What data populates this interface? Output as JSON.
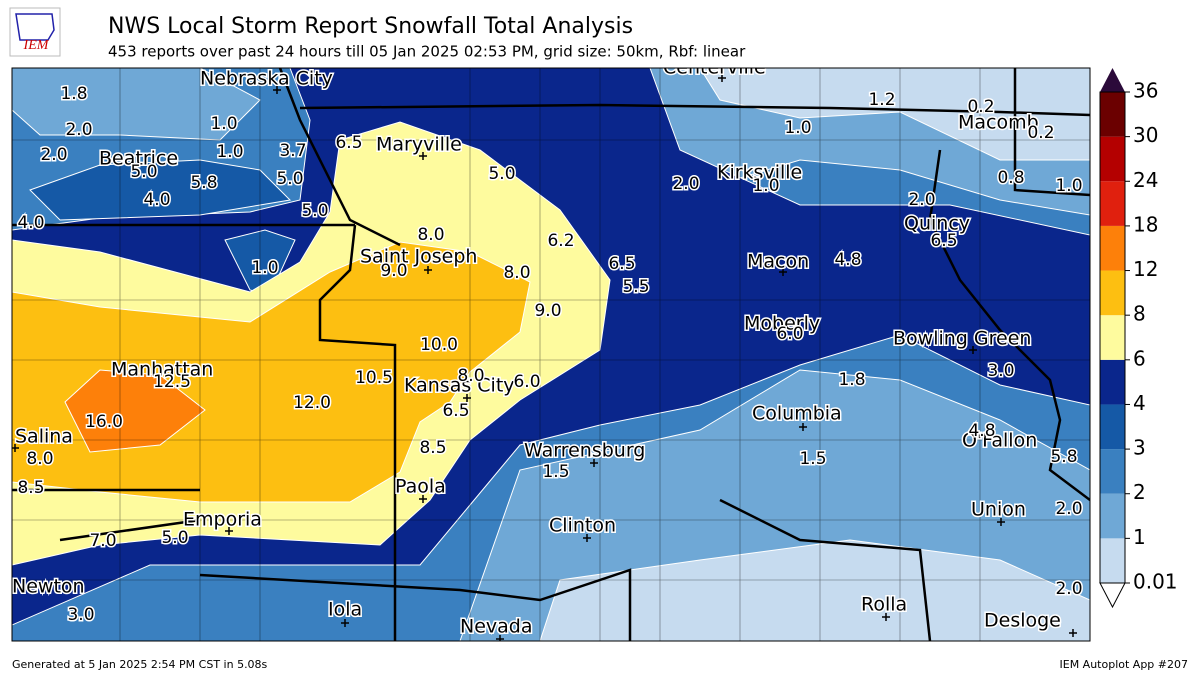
{
  "header": {
    "logo": "IEM",
    "title": "NWS Local Storm Report Snowfall Total Analysis",
    "subtitle": "453 reports over past 24 hours till 05 Jan 2025 02:53 PM, grid size: 50km, Rbf: linear"
  },
  "colorbar": {
    "levels": [
      0.01,
      1,
      2,
      3,
      4,
      6,
      8,
      12,
      18,
      24,
      30,
      36
    ],
    "colors": [
      "#c6dbef",
      "#6fa8d6",
      "#3a80c0",
      "#1559a6",
      "#0a268c",
      "#fefb9e",
      "#fdbf11",
      "#fd800a",
      "#e0200e",
      "#b40000",
      "#6b0000"
    ],
    "over_color": "#2b0a3a"
  },
  "cities": [
    "Nebraska City",
    "Centerville",
    "Macomb",
    "Beatrice",
    "Maryville",
    "Kirksville",
    "Quincy",
    "Saint Joseph",
    "Macon",
    "Moberly",
    "Bowling Green",
    "Manhattan",
    "Kansas City",
    "Columbia",
    "Salina",
    "O'Fallon",
    "Warrensburg",
    "Paola",
    "Union",
    "Emporia",
    "Clinton",
    "Newton",
    "Rolla",
    "Iola",
    "Nevada",
    "Desloge"
  ],
  "snowfall_labels": [
    "1.8",
    "2.0",
    "1.0",
    "0.2",
    "1.2",
    "1.0",
    "0.2",
    "2.0",
    "1.0",
    "3.7",
    "6.5",
    "5.0",
    "5.8",
    "5.0",
    "5.0",
    "2.0",
    "1.0",
    "0.8",
    "1.0",
    "4.0",
    "5.0",
    "2.0",
    "8.0",
    "6.2",
    "6.5",
    "4.0",
    "1.0",
    "9.0",
    "8.0",
    "6.5",
    "4.8",
    "5.5",
    "9.0",
    "6.0",
    "10.0",
    "3.0",
    "12.5",
    "10.5",
    "8.0",
    "6.0",
    "1.8",
    "12.0",
    "6.5",
    "16.0",
    "4.8",
    "8.5",
    "8.0",
    "1.5",
    "1.5",
    "5.8",
    "8.5",
    "2.0",
    "7.0",
    "5.0",
    "3.0",
    "2.0"
  ],
  "footer": {
    "left": "Generated at 5 Jan 2025 2:54 PM CST in 5.08s",
    "right": "IEM Autoplot App #207"
  }
}
